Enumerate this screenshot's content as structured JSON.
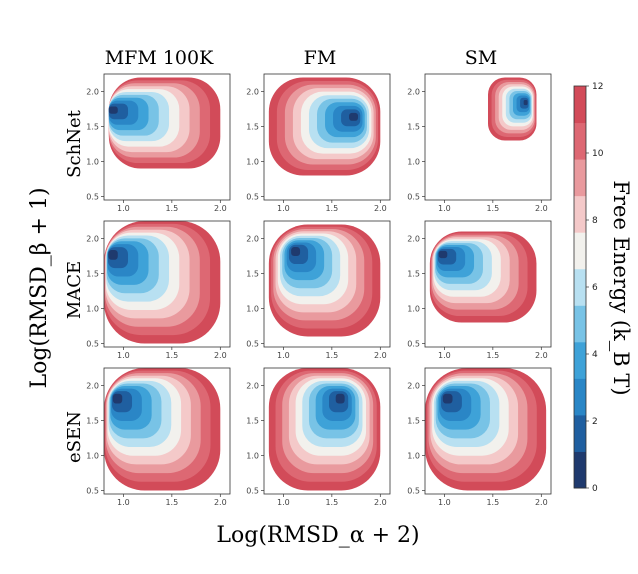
{
  "colors": [
    "#1f3a6e",
    "#1f5fa0",
    "#2a86c6",
    "#3ea2d8",
    "#78c3e6",
    "#b8e0f1",
    "#f2f1ed",
    "#f4c9c9",
    "#e99a9e",
    "#dd6873",
    "#d24b59"
  ],
  "chart_data": {
    "type": "heatmap",
    "subtype": "contour-grid",
    "xlabel": "Log(RMSD_α + 2)",
    "ylabel": "Log(RMSD_β + 1)",
    "columns": [
      "MFM 100K",
      "FM",
      "SM"
    ],
    "rows": [
      "SchNet",
      "MACE",
      "eSEN"
    ],
    "xticks": [
      "1.0",
      "1.5",
      "2.0"
    ],
    "yticks": [
      "0.5",
      "1.0",
      "1.5",
      "2.0"
    ],
    "xlim": [
      0.8,
      2.1
    ],
    "ylim": [
      0.45,
      2.25
    ],
    "colorbar": {
      "label": "Free Energy (k_B T)",
      "ticks": [
        "0",
        "2",
        "4",
        "6",
        "8",
        "10",
        "12"
      ],
      "range": [
        0,
        12
      ],
      "levels": 11
    },
    "panels": [
      {
        "row": "SchNet",
        "column": "MFM 100K",
        "min_x": 0.85,
        "min_y": 1.75,
        "extent_x": [
          0.85,
          2.0
        ],
        "extent_y": [
          0.9,
          2.2
        ]
      },
      {
        "row": "SchNet",
        "column": "FM",
        "min_x": 1.75,
        "min_y": 1.65,
        "extent_x": [
          0.85,
          2.0
        ],
        "extent_y": [
          0.8,
          2.2
        ]
      },
      {
        "row": "SchNet",
        "column": "SM",
        "min_x": 1.85,
        "min_y": 1.85,
        "extent_x": [
          1.45,
          1.95
        ],
        "extent_y": [
          1.3,
          2.2
        ]
      },
      {
        "row": "MACE",
        "column": "MFM 100K",
        "min_x": 0.85,
        "min_y": 1.8,
        "extent_x": [
          0.8,
          2.0
        ],
        "extent_y": [
          0.5,
          2.25
        ]
      },
      {
        "row": "MACE",
        "column": "FM",
        "min_x": 1.1,
        "min_y": 1.85,
        "extent_x": [
          0.85,
          2.0
        ],
        "extent_y": [
          0.6,
          2.2
        ]
      },
      {
        "row": "MACE",
        "column": "SM",
        "min_x": 0.95,
        "min_y": 1.8,
        "extent_x": [
          0.85,
          1.95
        ],
        "extent_y": [
          0.8,
          2.1
        ]
      },
      {
        "row": "eSEN",
        "column": "MFM 100K",
        "min_x": 0.9,
        "min_y": 1.85,
        "extent_x": [
          0.8,
          2.0
        ],
        "extent_y": [
          0.5,
          2.25
        ]
      },
      {
        "row": "eSEN",
        "column": "FM",
        "min_x": 1.6,
        "min_y": 1.85,
        "extent_x": [
          0.85,
          2.0
        ],
        "extent_y": [
          0.5,
          2.25
        ]
      },
      {
        "row": "eSEN",
        "column": "SM",
        "min_x": 1.0,
        "min_y": 1.85,
        "extent_x": [
          0.8,
          2.05
        ],
        "extent_y": [
          0.5,
          2.25
        ]
      }
    ]
  }
}
